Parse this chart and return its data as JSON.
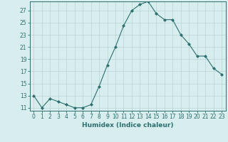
{
  "x": [
    0,
    1,
    2,
    3,
    4,
    5,
    6,
    7,
    8,
    9,
    10,
    11,
    12,
    13,
    14,
    15,
    16,
    17,
    18,
    19,
    20,
    21,
    22,
    23
  ],
  "y": [
    13,
    11,
    12.5,
    12,
    11.5,
    11,
    11,
    11.5,
    14.5,
    18,
    21,
    24.5,
    27,
    28,
    28.5,
    26.5,
    25.5,
    25.5,
    23,
    21.5,
    19.5,
    19.5,
    17.5,
    16.5
  ],
  "line_color": "#2d6e6e",
  "marker": "D",
  "marker_size": 2.0,
  "background_color": "#d8eeee",
  "grid_color": "#b0cfcf",
  "xlabel": "Humidex (Indice chaleur)",
  "ylabel_ticks": [
    11,
    13,
    15,
    17,
    19,
    21,
    23,
    25,
    27
  ],
  "xlim": [
    -0.5,
    23.5
  ],
  "ylim": [
    10.5,
    28.5
  ],
  "xlabel_fontsize": 6.5,
  "tick_fontsize": 5.5,
  "tick_color": "#2d6e6e",
  "spine_color": "#2d6e6e",
  "linewidth": 0.8
}
